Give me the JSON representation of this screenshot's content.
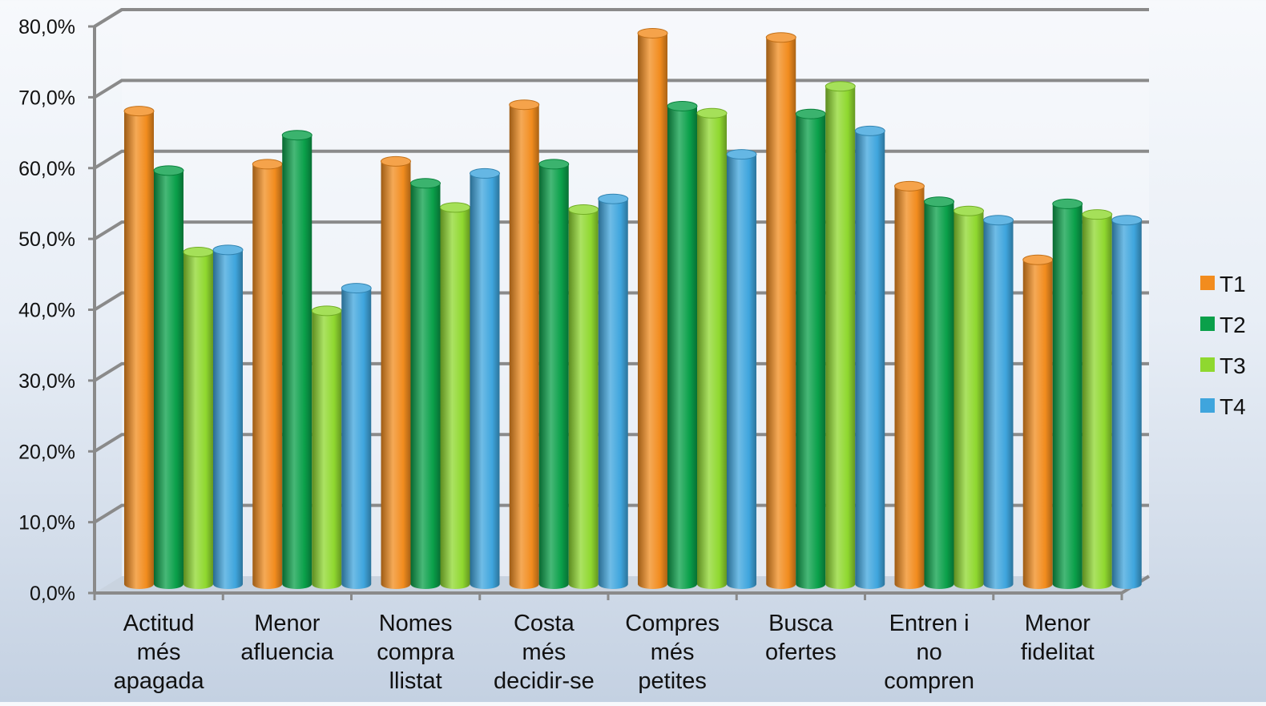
{
  "chart_data": {
    "type": "bar",
    "categories": [
      [
        "Actitud",
        "més",
        "apagada"
      ],
      [
        "Menor",
        "afluencia"
      ],
      [
        "Nomes",
        "compra",
        "llistat"
      ],
      [
        "Costa",
        "més",
        "decidir-se"
      ],
      [
        "Compres",
        "més",
        "petites"
      ],
      [
        "Busca",
        "ofertes"
      ],
      [
        "Entren i",
        "no",
        "compren"
      ],
      [
        "Menor",
        "fidelitat"
      ]
    ],
    "series": [
      {
        "name": "T1",
        "color": "#f28c1e",
        "values": [
          66.8,
          59.3,
          59.7,
          67.7,
          77.8,
          77.2,
          56.2,
          45.8
        ]
      },
      {
        "name": "T2",
        "color": "#0aa04a",
        "values": [
          58.4,
          63.4,
          56.6,
          59.3,
          67.5,
          66.4,
          54.0,
          53.7
        ]
      },
      {
        "name": "T3",
        "color": "#8fd82f",
        "values": [
          46.9,
          38.6,
          53.2,
          52.9,
          66.5,
          70.3,
          52.7,
          52.2
        ]
      },
      {
        "name": "T4",
        "color": "#3fa5dd",
        "values": [
          47.2,
          41.8,
          58.0,
          54.4,
          60.7,
          64.0,
          51.4,
          51.4
        ]
      }
    ],
    "y_ticks": [
      "0,0%",
      "10,0%",
      "20,0%",
      "30,0%",
      "40,0%",
      "50,0%",
      "60,0%",
      "70,0%",
      "80,0%"
    ],
    "ylim": [
      0,
      80
    ],
    "grid": true,
    "legend_position": "right",
    "style": "3d-cylinder"
  }
}
